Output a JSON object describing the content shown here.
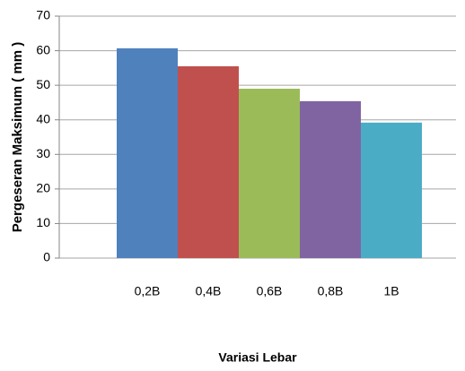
{
  "chart_data": {
    "type": "bar",
    "categories": [
      "0,2B",
      "0,4B",
      "0,6B",
      "0,8B",
      "1B"
    ],
    "values": [
      60.7,
      55.5,
      49,
      45.4,
      39.2
    ],
    "colors": [
      "#4f81bd",
      "#c0504d",
      "#9bbb59",
      "#8064a2",
      "#4bacc6"
    ],
    "ylim": [
      0,
      70
    ],
    "yticks": [
      0,
      10,
      20,
      30,
      40,
      50,
      60,
      70
    ],
    "grid": true,
    "y_label": "Pergeseran Maksimum ( mm )",
    "x_label": "Variasi Lebar"
  }
}
